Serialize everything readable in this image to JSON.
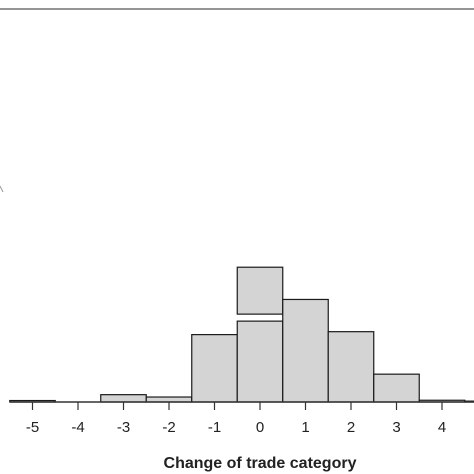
{
  "chart_data": {
    "type": "bar",
    "subtype": "histogram",
    "title": "",
    "xlabel": "Change of trade category",
    "ylabel": "",
    "x_ticks": [
      "-5",
      "-4",
      "-3",
      "-2",
      "-1",
      "0",
      "1",
      "2",
      "3",
      "4"
    ],
    "bins": [
      {
        "from": -5.5,
        "to": -4.5,
        "value": 0.5
      },
      {
        "from": -4.5,
        "to": -3.5,
        "value": 0
      },
      {
        "from": -3.5,
        "to": -2.5,
        "value": 2.5
      },
      {
        "from": -2.5,
        "to": -1.5,
        "value": 1.7
      },
      {
        "from": -1.5,
        "to": -0.5,
        "value": 23
      },
      {
        "from": -0.5,
        "to": 0.5,
        "value": 46,
        "axis_break": true
      },
      {
        "from": 0.5,
        "to": 1.5,
        "value": 35
      },
      {
        "from": 1.5,
        "to": 2.5,
        "value": 24
      },
      {
        "from": 2.5,
        "to": 3.5,
        "value": 9.5
      },
      {
        "from": 3.5,
        "to": 4.5,
        "value": 0.6
      },
      {
        "from": 4.5,
        "to": 5.5,
        "value": 0.3
      }
    ],
    "xlim": [
      -5.5,
      4.5
    ],
    "grid": false,
    "legend": "none",
    "colors": {
      "bar_fill": "#d4d4d4",
      "bar_stroke": "#1a1a1a",
      "axis": "#333333"
    }
  }
}
